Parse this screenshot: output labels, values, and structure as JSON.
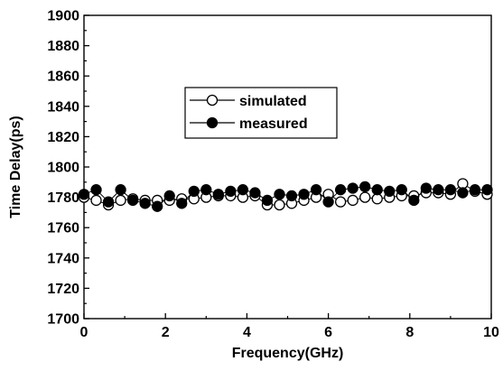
{
  "chart_data": {
    "type": "line",
    "title": "",
    "xlabel": "Frequency(GHz)",
    "ylabel": "Time Delay(ps)",
    "xlim": [
      0,
      10
    ],
    "ylim": [
      1700,
      1900
    ],
    "x_ticks": [
      "0",
      "2",
      "4",
      "6",
      "8",
      "10"
    ],
    "y_ticks": [
      "1700",
      "1720",
      "1740",
      "1760",
      "1780",
      "1800",
      "1820",
      "1840",
      "1860",
      "1880",
      "1900"
    ],
    "grid": false,
    "legend_position": "upper-center",
    "series": [
      {
        "name": "simulated",
        "marker": "open-circle",
        "color": "#000000",
        "x": [
          0.0,
          0.3,
          0.6,
          0.9,
          1.2,
          1.5,
          1.8,
          2.1,
          2.4,
          2.7,
          3.0,
          3.3,
          3.6,
          3.9,
          4.2,
          4.5,
          4.8,
          5.1,
          5.4,
          5.7,
          6.0,
          6.3,
          6.6,
          6.9,
          7.2,
          7.5,
          7.8,
          8.1,
          8.4,
          8.7,
          9.0,
          9.3,
          9.6,
          9.9
        ],
        "y": [
          1780,
          1778,
          1775,
          1778,
          1779,
          1778,
          1778,
          1778,
          1779,
          1779,
          1780,
          1781,
          1781,
          1780,
          1781,
          1775,
          1775,
          1776,
          1778,
          1780,
          1782,
          1777,
          1778,
          1780,
          1779,
          1780,
          1781,
          1781,
          1783,
          1783,
          1782,
          1789,
          1784,
          1782
        ]
      },
      {
        "name": "measured",
        "marker": "filled-circle",
        "color": "#000000",
        "x": [
          0.0,
          0.3,
          0.6,
          0.9,
          1.2,
          1.5,
          1.8,
          2.1,
          2.4,
          2.7,
          3.0,
          3.3,
          3.6,
          3.9,
          4.2,
          4.5,
          4.8,
          5.1,
          5.4,
          5.7,
          6.0,
          6.3,
          6.6,
          6.9,
          7.2,
          7.5,
          7.8,
          8.1,
          8.4,
          8.7,
          9.0,
          9.3,
          9.6,
          9.9
        ],
        "y": [
          1782,
          1785,
          1777,
          1785,
          1778,
          1776,
          1774,
          1781,
          1776,
          1784,
          1785,
          1782,
          1784,
          1785,
          1783,
          1778,
          1782,
          1781,
          1782,
          1785,
          1777,
          1785,
          1786,
          1787,
          1785,
          1784,
          1785,
          1778,
          1786,
          1785,
          1785,
          1783,
          1785,
          1785
        ]
      }
    ]
  }
}
